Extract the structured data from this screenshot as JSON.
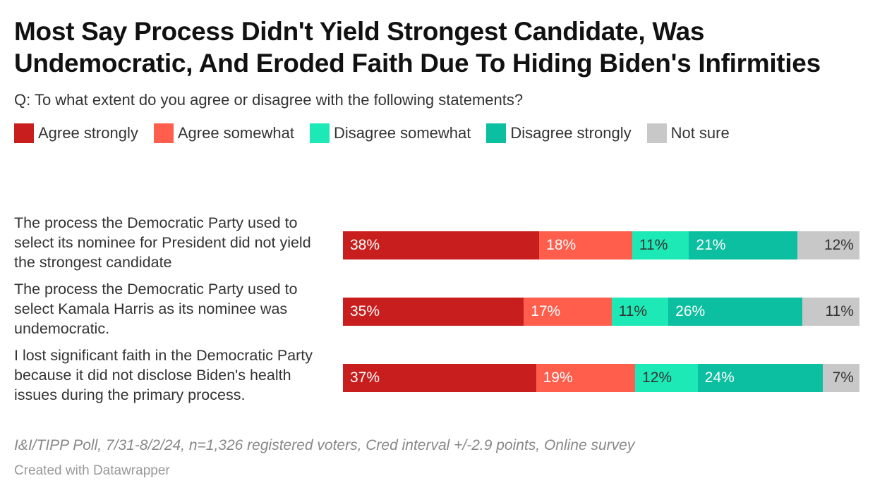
{
  "chart_data": {
    "type": "bar",
    "orientation": "horizontal",
    "stacked": true,
    "title": "Most Say Process Didn't Yield Strongest Candidate, Was Undemocratic, And Eroded Faith Due To Hiding Biden's Infirmities",
    "subtitle": "Q: To what extent do you agree or disagree with the following statements?",
    "categories": [
      "The process the Democratic Party used to select its nominee for President did not yield the strongest candidate",
      "The process the Democratic Party used to select Kamala Harris as its nominee was undemocratic.",
      "I lost significant faith in the Democratic Party because it did not disclose Biden's health issues during the primary process."
    ],
    "series": [
      {
        "name": "Agree strongly",
        "color": "#c81e1e",
        "text_color": "#ffffff",
        "values": [
          38,
          35,
          37
        ]
      },
      {
        "name": "Agree somewhat",
        "color": "#ff5e4d",
        "text_color": "#ffffff",
        "values": [
          18,
          17,
          19
        ]
      },
      {
        "name": "Disagree somewhat",
        "color": "#1de9b6",
        "text_color": "#333333",
        "values": [
          11,
          11,
          12
        ]
      },
      {
        "name": "Disagree strongly",
        "color": "#0bbfa0",
        "text_color": "#ffffff",
        "values": [
          21,
          26,
          24
        ]
      },
      {
        "name": "Not sure",
        "color": "#c8c8c8",
        "text_color": "#333333",
        "values": [
          12,
          11,
          7
        ]
      }
    ],
    "value_suffix": "%",
    "legend_position": "top",
    "notes": "I&I/TIPP Poll, 7/31-8/2/24, n=1,326 registered voters, Cred interval +/-2.9 points, Online survey",
    "credit": "Created with Datawrapper"
  }
}
